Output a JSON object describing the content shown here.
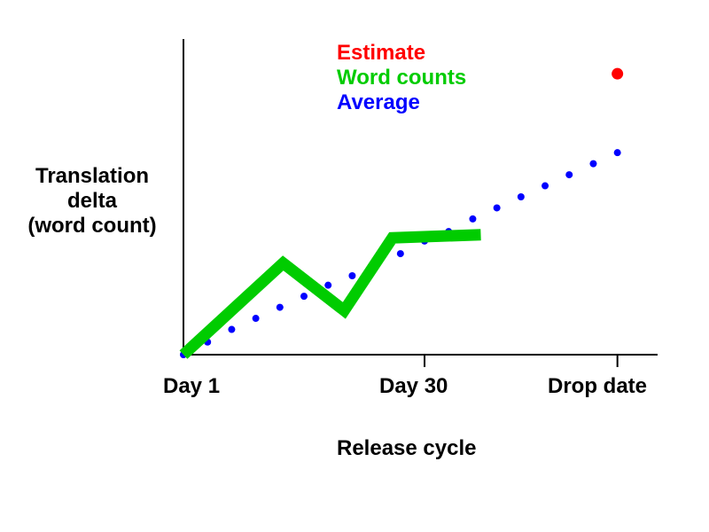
{
  "chart_data": {
    "type": "line",
    "xlabel": "Release cycle",
    "ylabel_lines": [
      "Translation",
      "delta",
      "(word count)"
    ],
    "x_ticks": [
      {
        "label": "Day 1",
        "x": 0
      },
      {
        "label": "Day 30",
        "x": 30
      },
      {
        "label": "Drop date",
        "x": 54
      }
    ],
    "xlim": [
      0,
      59
    ],
    "ylim": [
      0,
      100
    ],
    "legend": [
      {
        "label": "Estimate",
        "color": "#ff0000"
      },
      {
        "label": "Word counts",
        "color": "#00cc00"
      },
      {
        "label": "Average",
        "color": "#0000ff"
      }
    ],
    "series": [
      {
        "name": "Word counts",
        "style": "thick-line",
        "color": "#00cc00",
        "x": [
          0,
          12.4,
          20,
          26,
          37
        ],
        "y": [
          0,
          29,
          14,
          37,
          38
        ]
      },
      {
        "name": "Average",
        "style": "dots",
        "color": "#0000ff",
        "x": [
          0,
          3,
          6,
          9,
          12,
          15,
          18,
          21,
          27,
          30,
          33,
          36,
          39,
          42,
          45,
          48,
          51,
          54
        ],
        "y": [
          0,
          4,
          8,
          11.5,
          15,
          18.5,
          22,
          25,
          32,
          36,
          39,
          43,
          46.5,
          50,
          53.5,
          57,
          60.5,
          64
        ]
      },
      {
        "name": "Estimate",
        "style": "point",
        "color": "#ff0000",
        "x": [
          54
        ],
        "y": [
          89
        ]
      }
    ]
  }
}
